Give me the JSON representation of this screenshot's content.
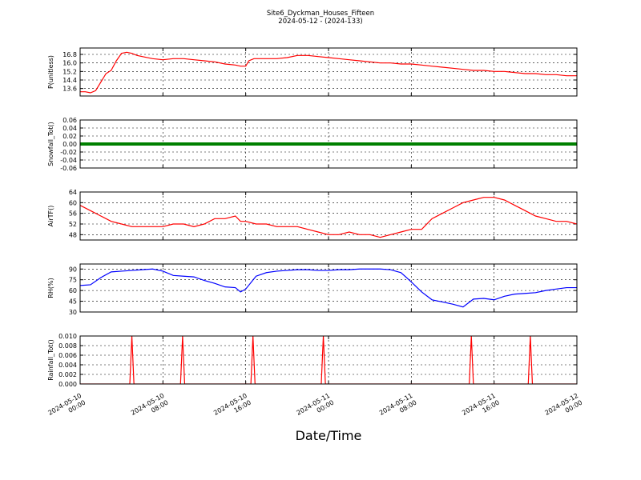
{
  "header": {
    "title": "Site6_Dyckman_Houses_Fifteen",
    "subtitle": "2024-05-12 - (2024-133)"
  },
  "xaxis": {
    "label": "Date/Time",
    "range": [
      "2024-05-10 00:00",
      "2024-05-12 00:00"
    ],
    "ticks": [
      {
        "t": 0,
        "line1": "2024-05-10",
        "line2": "00:00"
      },
      {
        "t": 8,
        "line1": "2024-05-10",
        "line2": "08:00"
      },
      {
        "t": 16,
        "line1": "2024-05-10",
        "line2": "16:00"
      },
      {
        "t": 24,
        "line1": "2024-05-11",
        "line2": "00:00"
      },
      {
        "t": 32,
        "line1": "2024-05-11",
        "line2": "08:00"
      },
      {
        "t": 40,
        "line1": "2024-05-11",
        "line2": "16:00"
      },
      {
        "t": 48,
        "line1": "2024-05-12",
        "line2": "00:00"
      }
    ]
  },
  "chart_data": [
    {
      "type": "line",
      "ylabel": "P(unitless)",
      "ylim": [
        12.9,
        17.4
      ],
      "yticks": [
        "13.6",
        "14.4",
        "15.2",
        "16.0",
        "16.8"
      ],
      "ytick_values": [
        13.6,
        14.4,
        15.2,
        16.0,
        16.8
      ],
      "grid": true,
      "color": "#ff0000",
      "x": [
        0,
        0.5,
        1,
        1.5,
        2,
        2.5,
        3,
        3.5,
        4,
        4.5,
        5,
        5.5,
        6,
        7,
        8,
        9,
        10,
        11,
        12,
        13,
        14,
        15,
        15.5,
        16,
        16.3,
        16.8,
        17.5,
        18,
        19,
        20,
        21,
        22,
        23,
        24,
        25,
        26,
        27,
        28,
        29,
        30,
        31,
        32,
        33,
        34,
        35,
        36,
        37,
        38,
        39,
        40,
        41,
        42,
        43,
        44,
        45,
        46,
        47,
        48
      ],
      "y": [
        13.3,
        13.3,
        13.2,
        13.4,
        14.2,
        15.0,
        15.3,
        16.2,
        16.9,
        17.0,
        16.9,
        16.7,
        16.6,
        16.4,
        16.3,
        16.4,
        16.4,
        16.3,
        16.2,
        16.1,
        15.9,
        15.8,
        15.7,
        15.7,
        16.2,
        16.4,
        16.4,
        16.4,
        16.4,
        16.5,
        16.7,
        16.7,
        16.6,
        16.5,
        16.4,
        16.3,
        16.2,
        16.1,
        16.0,
        16.0,
        15.9,
        15.9,
        15.8,
        15.7,
        15.6,
        15.5,
        15.4,
        15.3,
        15.3,
        15.2,
        15.2,
        15.1,
        15.0,
        15.0,
        14.9,
        14.9,
        14.8,
        14.8
      ]
    },
    {
      "type": "scatter",
      "ylabel": "Snowfall_Tot()",
      "ylim": [
        -0.06,
        0.06
      ],
      "yticks": [
        "-0.06",
        "-0.04",
        "-0.02",
        "0.00",
        "0.02",
        "0.04",
        "0.06"
      ],
      "ytick_values": [
        -0.06,
        -0.04,
        -0.02,
        0.0,
        0.02,
        0.04,
        0.06
      ],
      "grid": true,
      "color": "#008000",
      "x": [
        0,
        48
      ],
      "y": [
        0.0,
        0.0
      ]
    },
    {
      "type": "line",
      "ylabel": "AirTF()",
      "ylim": [
        46,
        64
      ],
      "yticks": [
        "48",
        "52",
        "56",
        "60",
        "64"
      ],
      "ytick_values": [
        48,
        52,
        56,
        60,
        64
      ],
      "grid": true,
      "color": "#ff0000",
      "x": [
        0,
        1,
        2,
        3,
        4,
        5,
        6,
        7,
        8,
        9,
        10,
        11,
        12,
        13,
        14,
        15,
        15.5,
        16,
        17,
        18,
        19,
        20,
        21,
        22,
        23,
        24,
        25,
        26,
        27,
        28,
        29,
        30,
        31,
        32,
        33,
        34,
        35,
        36,
        37,
        38,
        39,
        40,
        41,
        42,
        43,
        44,
        45,
        46,
        47,
        48
      ],
      "y": [
        59,
        57,
        55,
        53,
        52,
        51,
        51,
        51,
        51,
        52,
        52,
        51,
        52,
        54,
        54,
        55,
        53,
        53,
        52,
        52,
        51,
        51,
        51,
        50,
        49,
        48,
        48,
        49,
        48,
        48,
        47,
        48,
        49,
        50,
        50,
        54,
        56,
        58,
        60,
        61,
        62,
        62,
        61,
        59,
        57,
        55,
        54,
        53,
        53,
        52
      ]
    },
    {
      "type": "line",
      "ylabel": "RH(%)",
      "ylim": [
        30,
        97
      ],
      "yticks": [
        "30",
        "45",
        "60",
        "75",
        "90"
      ],
      "ytick_values": [
        30,
        45,
        60,
        75,
        90
      ],
      "grid": true,
      "color": "#0000ff",
      "x": [
        0,
        1,
        2,
        3,
        4,
        5,
        6,
        7,
        8,
        9,
        10,
        11,
        12,
        13,
        14,
        15,
        15.5,
        16,
        17,
        18,
        19,
        20,
        21,
        22,
        23,
        24,
        25,
        26,
        27,
        28,
        29,
        30,
        31,
        32,
        33,
        34,
        35,
        36,
        37,
        38,
        39,
        40,
        41,
        42,
        43,
        44,
        45,
        46,
        47,
        48
      ],
      "y": [
        67,
        68,
        78,
        86,
        87,
        88,
        89,
        90,
        87,
        81,
        80,
        79,
        74,
        70,
        65,
        64,
        58,
        62,
        80,
        85,
        87,
        88,
        89,
        89,
        88,
        88,
        89,
        89,
        90,
        90,
        90,
        89,
        85,
        72,
        58,
        47,
        44,
        41,
        37,
        48,
        49,
        47,
        52,
        55,
        56,
        57,
        60,
        62,
        64,
        64
      ]
    },
    {
      "type": "line",
      "ylabel": "Rainfall_Tot()",
      "ylim": [
        0.0,
        0.01
      ],
      "yticks": [
        "0.000",
        "0.002",
        "0.004",
        "0.006",
        "0.008",
        "0.010"
      ],
      "ytick_values": [
        0.0,
        0.002,
        0.004,
        0.006,
        0.008,
        0.01
      ],
      "grid": true,
      "color": "#ff0000",
      "x": [
        0,
        4.8,
        5.0,
        5.2,
        9.7,
        9.9,
        10.1,
        16.5,
        16.7,
        16.9,
        23.3,
        23.5,
        23.7,
        37.6,
        37.8,
        38.0,
        43.3,
        43.5,
        43.7,
        48
      ],
      "y": [
        0.0,
        0.0,
        0.01,
        0.0,
        0.0,
        0.01,
        0.0,
        0.0,
        0.01,
        0.0,
        0.0,
        0.01,
        0.0,
        0.0,
        0.01,
        0.0,
        0.0,
        0.01,
        0.0,
        0.0
      ]
    }
  ]
}
